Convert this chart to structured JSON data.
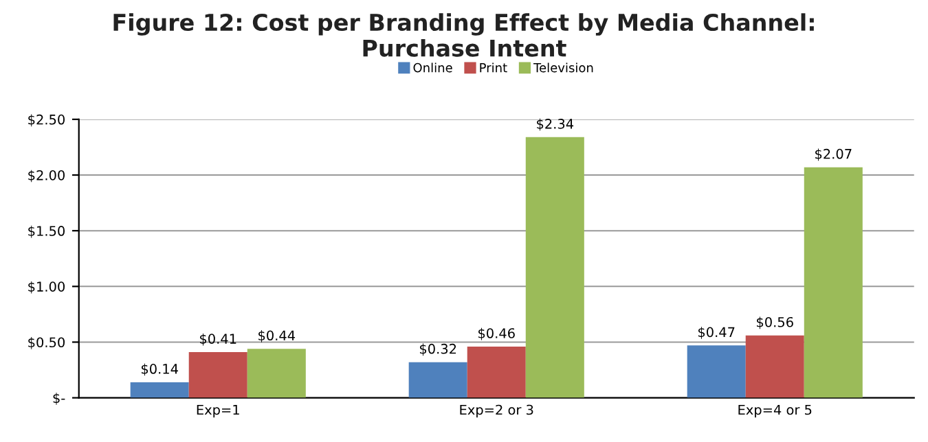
{
  "chart_data": {
    "type": "bar",
    "title": "Figure 12: Cost per Branding Effect by Media Channel:\nPurchase Intent",
    "categories": [
      "Exp=1",
      "Exp=2 or 3",
      "Exp=4 or 5"
    ],
    "series": [
      {
        "name": "Online",
        "color": "#4f81bd",
        "values": [
          0.14,
          0.32,
          0.47
        ],
        "value_labels": [
          "$0.14",
          "$0.32",
          "$0.47"
        ]
      },
      {
        "name": "Print",
        "color": "#c0504d",
        "values": [
          0.41,
          0.46,
          0.56
        ],
        "value_labels": [
          "$0.41",
          "$0.46",
          "$0.56"
        ]
      },
      {
        "name": "Television",
        "color": "#9bbb59",
        "values": [
          0.44,
          2.34,
          2.07
        ],
        "value_labels": [
          "$0.44",
          "$2.34",
          "$2.07"
        ]
      }
    ],
    "ylim": [
      0,
      2.5
    ],
    "yticks": [
      {
        "value": 0,
        "label": "$-"
      },
      {
        "value": 0.5,
        "label": "$0.50"
      },
      {
        "value": 1.0,
        "label": "$1.00"
      },
      {
        "value": 1.5,
        "label": "$1.50"
      },
      {
        "value": 2.0,
        "label": "$2.00"
      },
      {
        "value": 2.5,
        "label": "$2.50"
      }
    ],
    "grid": "y",
    "legend": "top"
  }
}
